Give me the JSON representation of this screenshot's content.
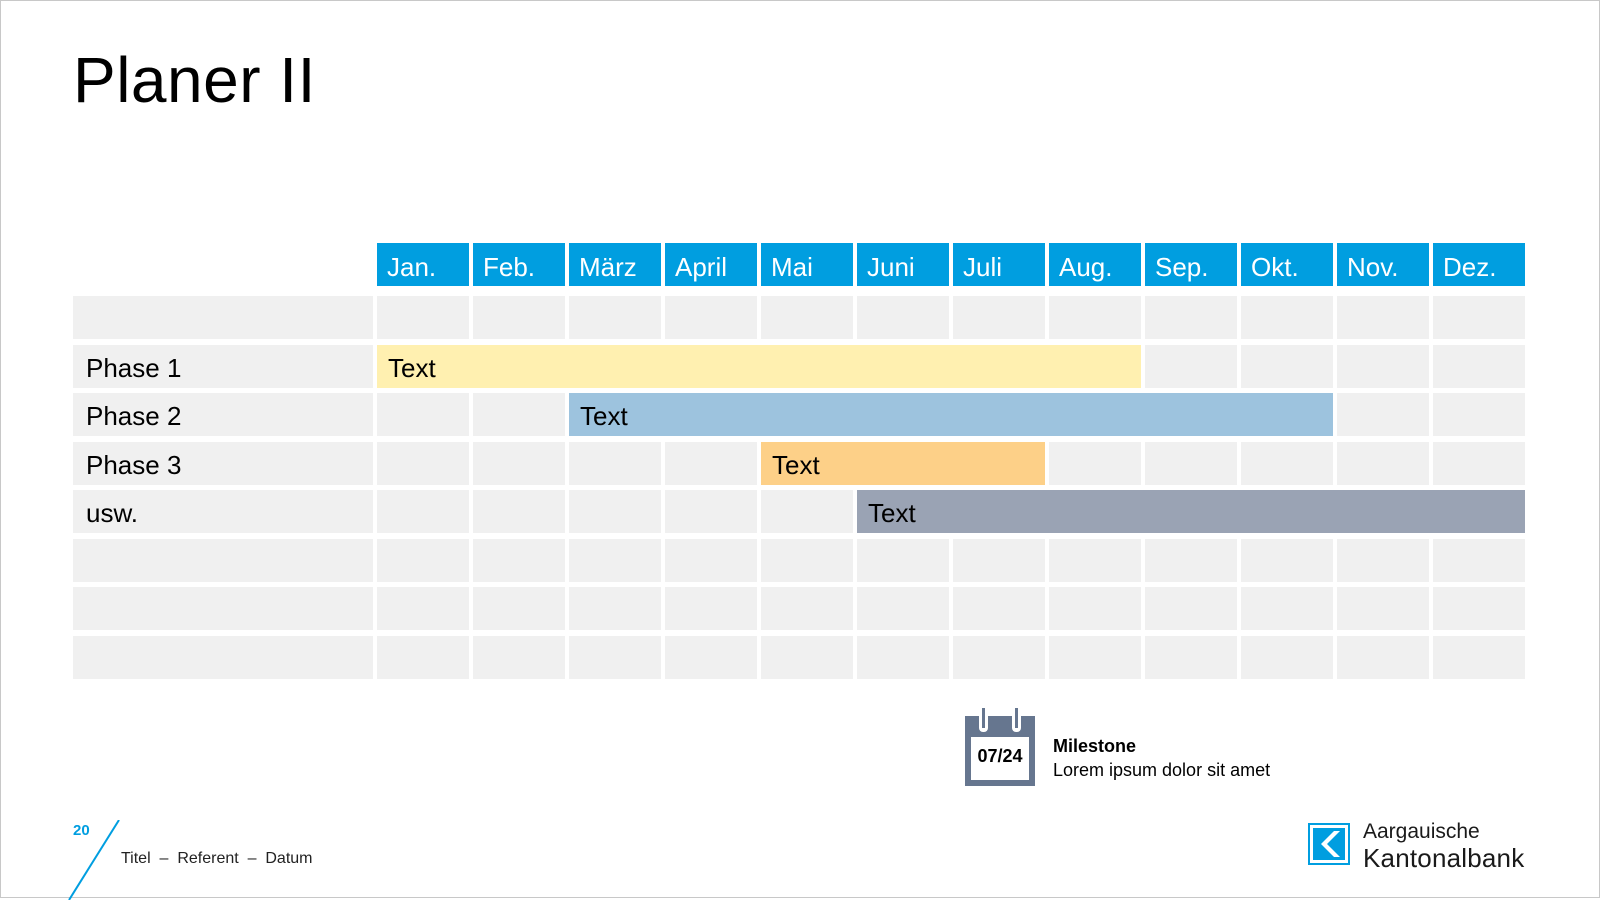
{
  "slide": {
    "title": "Planer II",
    "page_number": "20",
    "footer": "Titel  –  Referent  –  Datum"
  },
  "planner": {
    "months": [
      "Jan.",
      "Feb.",
      "März",
      "April",
      "Mai",
      "Juni",
      "Juli",
      "Aug.",
      "Sep.",
      "Okt.",
      "Nov.",
      "Dez."
    ],
    "rows": [
      "",
      "Phase 1",
      "Phase 2",
      "Phase 3",
      "usw.",
      "",
      "",
      ""
    ],
    "bars": [
      {
        "row": 1,
        "start_month": 1,
        "end_month": 8,
        "label": "Text",
        "color": "#fff0b0"
      },
      {
        "row": 2,
        "start_month": 3,
        "end_month": 10,
        "label": "Text",
        "color": "#9dc3de"
      },
      {
        "row": 3,
        "start_month": 5,
        "end_month": 7,
        "label": "Text",
        "color": "#fdd088"
      },
      {
        "row": 4,
        "start_month": 6,
        "end_month": 12,
        "label": "Text",
        "color": "#9aa3b4"
      }
    ],
    "colors": {
      "header": "#009ee0",
      "cell": "#f0f0f0"
    }
  },
  "milestone": {
    "date": "07/24",
    "title": "Milestone",
    "description": "Lorem ipsum dolor sit amet",
    "icon": "calendar-icon",
    "icon_color": "#66768f"
  },
  "logo": {
    "line1": "Aargauische",
    "line2": "Kantonalbank",
    "icon": "bank-logo-icon",
    "color": "#009ee0"
  }
}
